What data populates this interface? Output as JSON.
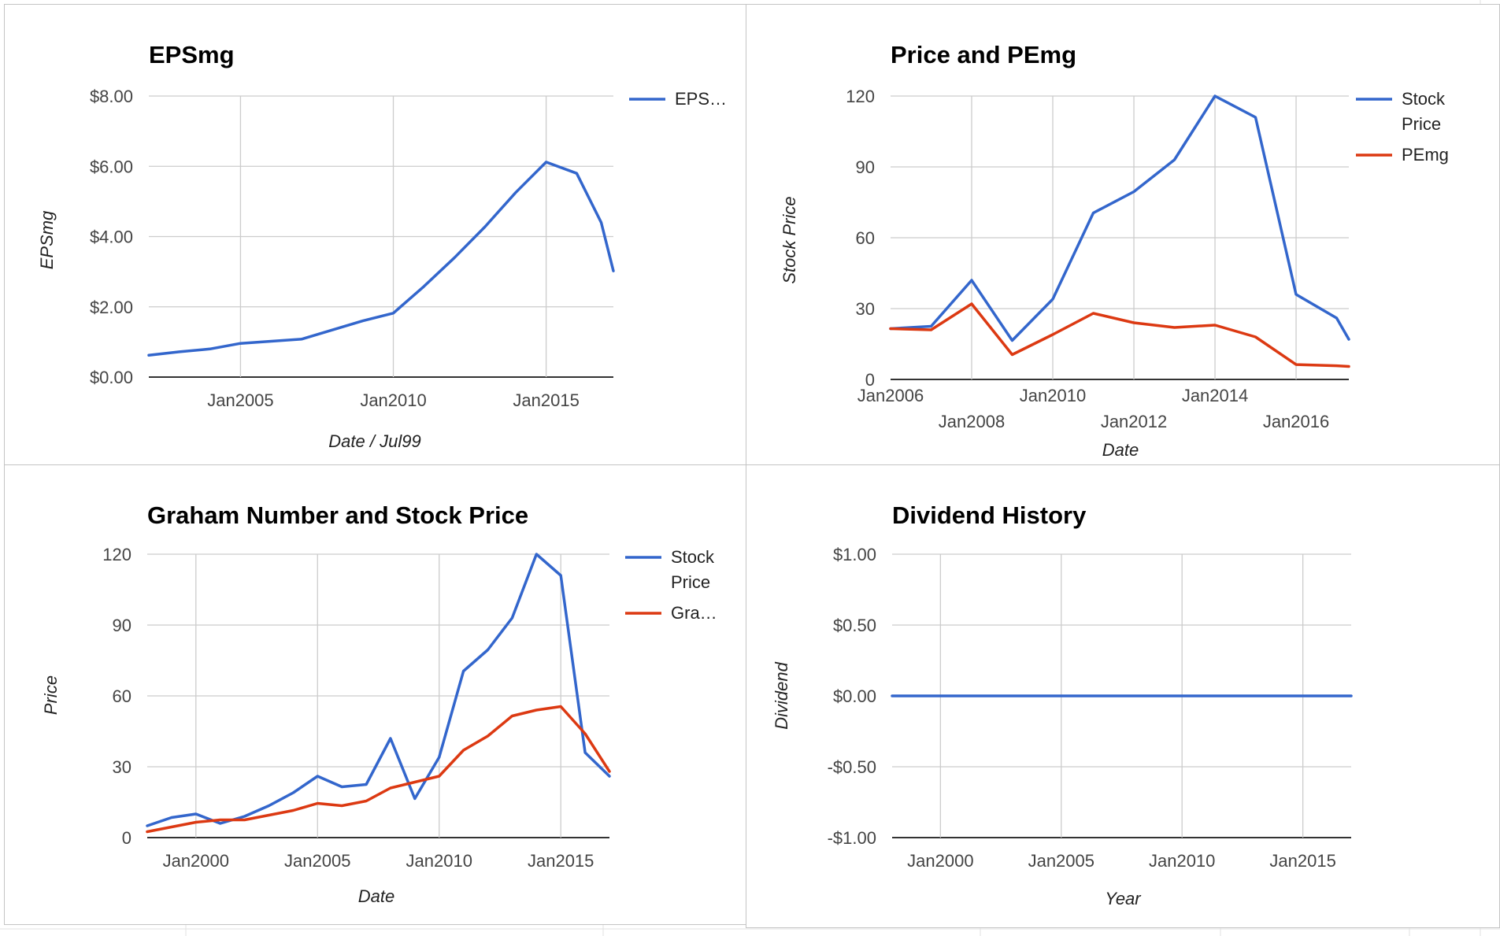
{
  "colors": {
    "blue": "#3366cc",
    "red": "#dc3912",
    "grid": "#cccccc",
    "axis": "#333333"
  },
  "charts": [
    {
      "key": "eps",
      "chart_data": {
        "type": "line",
        "title": "EPSmg",
        "xlabel": "Date / Jul99",
        "ylabel": "EPSmg",
        "xlim": [
          2002.0,
          2017.2
        ],
        "ylim": [
          0,
          8
        ],
        "xticks": [
          {
            "v": 2005,
            "label": "Jan2005"
          },
          {
            "v": 2010,
            "label": "Jan2010"
          },
          {
            "v": 2015,
            "label": "Jan2015"
          }
        ],
        "yticks": [
          {
            "v": 0,
            "label": "$0.00"
          },
          {
            "v": 2,
            "label": "$2.00"
          },
          {
            "v": 4,
            "label": "$4.00"
          },
          {
            "v": 6,
            "label": "$6.00"
          },
          {
            "v": 8,
            "label": "$8.00"
          }
        ],
        "legend_position": "right",
        "series": [
          {
            "name": "EPS…",
            "color": "#3366cc",
            "x": [
              2002.0,
              2003,
              2004,
              2005,
              2006,
              2007,
              2008,
              2009,
              2010,
              2011,
              2012,
              2013,
              2014,
              2015,
              2016,
              2016.8,
              2017.2
            ],
            "y": [
              0.62,
              0.72,
              0.8,
              0.96,
              1.02,
              1.08,
              1.34,
              1.6,
              1.82,
              2.58,
              3.4,
              4.28,
              5.25,
              6.12,
              5.8,
              4.4,
              3.02
            ]
          }
        ]
      }
    },
    {
      "key": "price-pe",
      "chart_data": {
        "type": "line",
        "title": "Price and PEmg",
        "xlabel": "Date",
        "ylabel": "Stock Price",
        "xlim": [
          2006.0,
          2017.3
        ],
        "ylim": [
          0,
          120
        ],
        "xticks": [
          {
            "v": 2006,
            "label": "Jan2006"
          },
          {
            "v": 2008,
            "label": "Jan2008"
          },
          {
            "v": 2010,
            "label": "Jan2010"
          },
          {
            "v": 2012,
            "label": "Jan2012"
          },
          {
            "v": 2014,
            "label": "Jan2014"
          },
          {
            "v": 2016,
            "label": "Jan2016"
          }
        ],
        "yticks": [
          {
            "v": 0,
            "label": "0"
          },
          {
            "v": 30,
            "label": "30"
          },
          {
            "v": 60,
            "label": "60"
          },
          {
            "v": 90,
            "label": "90"
          },
          {
            "v": 120,
            "label": "120"
          }
        ],
        "legend_position": "right",
        "series": [
          {
            "name": "Stock Price",
            "color": "#3366cc",
            "x": [
              2006.0,
              2007,
              2008,
              2009,
              2010,
              2011,
              2012,
              2013,
              2014,
              2015,
              2016,
              2017,
              2017.3
            ],
            "y": [
              21.5,
              22.5,
              42,
              16.5,
              34,
              70.5,
              79.5,
              93,
              120,
              111,
              36,
              26,
              17
            ]
          },
          {
            "name": "PEmg",
            "color": "#dc3912",
            "x": [
              2006.0,
              2007,
              2008,
              2009,
              2010,
              2011,
              2012,
              2013,
              2014,
              2015,
              2016,
              2017,
              2017.3
            ],
            "y": [
              21.5,
              21,
              32,
              10.5,
              19,
              28,
              24,
              22,
              23,
              18,
              6.3,
              5.8,
              5.5
            ]
          }
        ]
      }
    },
    {
      "key": "graham",
      "chart_data": {
        "type": "line",
        "title": "Graham Number and Stock Price",
        "xlabel": "Date",
        "ylabel": "Price",
        "xlim": [
          1998.0,
          2017.0
        ],
        "ylim": [
          0,
          120
        ],
        "xticks": [
          {
            "v": 2000,
            "label": "Jan2000"
          },
          {
            "v": 2005,
            "label": "Jan2005"
          },
          {
            "v": 2010,
            "label": "Jan2010"
          },
          {
            "v": 2015,
            "label": "Jan2015"
          }
        ],
        "yticks": [
          {
            "v": 0,
            "label": "0"
          },
          {
            "v": 30,
            "label": "30"
          },
          {
            "v": 60,
            "label": "60"
          },
          {
            "v": 90,
            "label": "90"
          },
          {
            "v": 120,
            "label": "120"
          }
        ],
        "legend_position": "right",
        "series": [
          {
            "name": "Stock Price",
            "color": "#3366cc",
            "x": [
              1998.0,
              1999,
              2000,
              2001,
              2002,
              2003,
              2004,
              2005,
              2006,
              2007,
              2008,
              2009,
              2010,
              2011,
              2012,
              2013,
              2014,
              2015,
              2016,
              2017.0
            ],
            "y": [
              5,
              8.5,
              10,
              6,
              9,
              13.5,
              19,
              26,
              21.5,
              22.5,
              42,
              16.5,
              34,
              70.5,
              79.5,
              93,
              120,
              111,
              36,
              26
            ]
          },
          {
            "name": "Gra…",
            "color": "#dc3912",
            "x": [
              1998.0,
              1999,
              2000,
              2001,
              2002,
              2003,
              2004,
              2005,
              2006,
              2007,
              2008,
              2009,
              2010,
              2011,
              2012,
              2013,
              2014,
              2015,
              2016,
              2017.0
            ],
            "y": [
              2.5,
              4.5,
              6.5,
              7.5,
              7.5,
              9.5,
              11.5,
              14.5,
              13.5,
              15.5,
              21,
              23.5,
              26,
              37,
              43,
              51.5,
              54,
              55.5,
              44,
              28
            ]
          }
        ]
      }
    },
    {
      "key": "dividend",
      "chart_data": {
        "type": "line",
        "title": "Dividend History",
        "xlabel": "Year",
        "ylabel": "Dividend",
        "xlim": [
          1998.0,
          2017.0
        ],
        "ylim": [
          -1,
          1
        ],
        "xticks": [
          {
            "v": 2000,
            "label": "Jan2000"
          },
          {
            "v": 2005,
            "label": "Jan2005"
          },
          {
            "v": 2010,
            "label": "Jan2010"
          },
          {
            "v": 2015,
            "label": "Jan2015"
          }
        ],
        "yticks": [
          {
            "v": 1,
            "label": "$1.00"
          },
          {
            "v": 0.5,
            "label": "$0.50"
          },
          {
            "v": 0,
            "label": "$0.00"
          },
          {
            "v": -0.5,
            "label": "-$0.50"
          },
          {
            "v": -1,
            "label": "-$1.00"
          }
        ],
        "legend_position": "none",
        "series": [
          {
            "color": "#3366cc",
            "x": [
              1998.0,
              2017.0
            ],
            "y": [
              0,
              0
            ]
          }
        ]
      }
    }
  ]
}
